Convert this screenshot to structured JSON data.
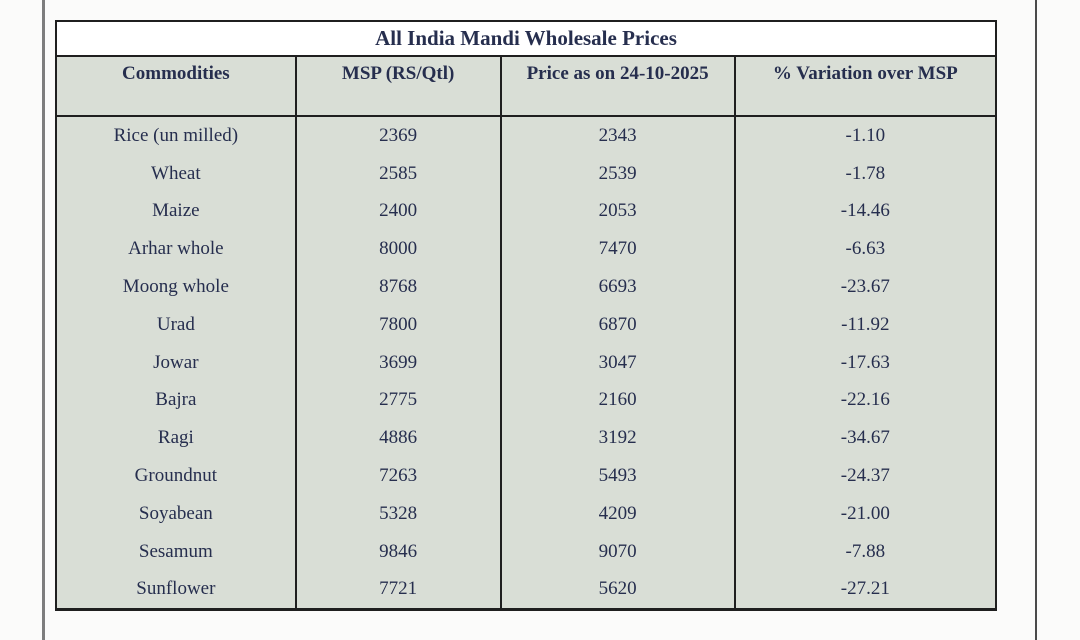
{
  "page": {
    "title": "All India Mandi Wholesale Prices"
  },
  "table": {
    "columns": [
      "Commodities",
      "MSP (RS/Qtl)",
      "Price as on 24-10-2025",
      "% Variation over MSP"
    ],
    "rows": [
      {
        "commodity": "Rice (un milled)",
        "msp": "2369",
        "price": "2343",
        "variation": "-1.10"
      },
      {
        "commodity": "Wheat",
        "msp": "2585",
        "price": "2539",
        "variation": "-1.78"
      },
      {
        "commodity": "Maize",
        "msp": "2400",
        "price": "2053",
        "variation": "-14.46"
      },
      {
        "commodity": "Arhar whole",
        "msp": "8000",
        "price": "7470",
        "variation": "-6.63"
      },
      {
        "commodity": "Moong whole",
        "msp": "8768",
        "price": "6693",
        "variation": "-23.67"
      },
      {
        "commodity": "Urad",
        "msp": "7800",
        "price": "6870",
        "variation": "-11.92"
      },
      {
        "commodity": "Jowar",
        "msp": "3699",
        "price": "3047",
        "variation": "-17.63"
      },
      {
        "commodity": "Bajra",
        "msp": "2775",
        "price": "2160",
        "variation": "-22.16"
      },
      {
        "commodity": "Ragi",
        "msp": "4886",
        "price": "3192",
        "variation": "-34.67"
      },
      {
        "commodity": "Groundnut",
        "msp": "7263",
        "price": "5493",
        "variation": "-24.37"
      },
      {
        "commodity": "Soyabean",
        "msp": "5328",
        "price": "4209",
        "variation": "-21.00"
      },
      {
        "commodity": "Sesamum",
        "msp": "9846",
        "price": "9070",
        "variation": "-7.88"
      },
      {
        "commodity": "Sunflower",
        "msp": "7721",
        "price": "5620",
        "variation": "-27.21"
      }
    ]
  },
  "colors": {
    "cell_background": "#d9ded6",
    "title_background": "#ffffff",
    "text": "#262e4e",
    "border": "#1f1f1f",
    "left_rule": "#7d7d7d",
    "right_rule": "#4a4a4a"
  }
}
